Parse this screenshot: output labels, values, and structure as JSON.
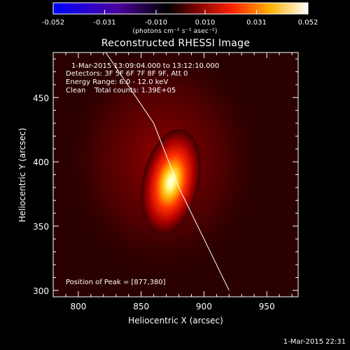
{
  "colorbar": {
    "tick_labels": [
      "-0.052",
      "-0.031",
      "-0.010",
      "0.010",
      "0.031",
      "0.052"
    ],
    "tick_values": [
      -0.052,
      -0.031,
      -0.01,
      0.01,
      0.031,
      0.052
    ],
    "unit_label": "(photons cm⁻² s⁻¹ asec⁻²)",
    "colors": [
      "#0000ff",
      "#000000",
      "#ff0000",
      "#ffff00",
      "#ffffff"
    ]
  },
  "chart_data": {
    "type": "heatmap",
    "title": "Reconstructed RHESSI Image",
    "xlabel": "Heliocentric X (arcsec)",
    "ylabel": "Heliocentric Y (arcsec)",
    "xlim": [
      780,
      975
    ],
    "ylim": [
      295,
      485
    ],
    "x_ticks": [
      800,
      850,
      900,
      950
    ],
    "y_ticks": [
      300,
      350,
      400,
      450
    ],
    "x_tick_labels": [
      "800",
      "850",
      "900",
      "950"
    ],
    "y_tick_labels": [
      "300",
      "350",
      "400",
      "450"
    ],
    "peak": {
      "x": 877,
      "y": 380,
      "value": 0.052
    },
    "source_width_arcsec": 45,
    "limb_line": [
      [
        817,
        492
      ],
      [
        860,
        430
      ],
      [
        880,
        380
      ],
      [
        900,
        340
      ],
      [
        920,
        300
      ]
    ],
    "annotations": {
      "time_range": "1-Mar-2015 13:09:04.000 to 13:12:10.000",
      "detectors": "Detectors: 3F 5F 6F 7F 8F 9F, Att 0",
      "energy_range": "Energy Range: 6.0 - 12.0 keV",
      "method": "Clean    Total counts: 1.39E+05",
      "peak_position": "Position of Peak = [877,380]"
    }
  },
  "footer": {
    "timestamp": "1-Mar-2015 22:31"
  }
}
